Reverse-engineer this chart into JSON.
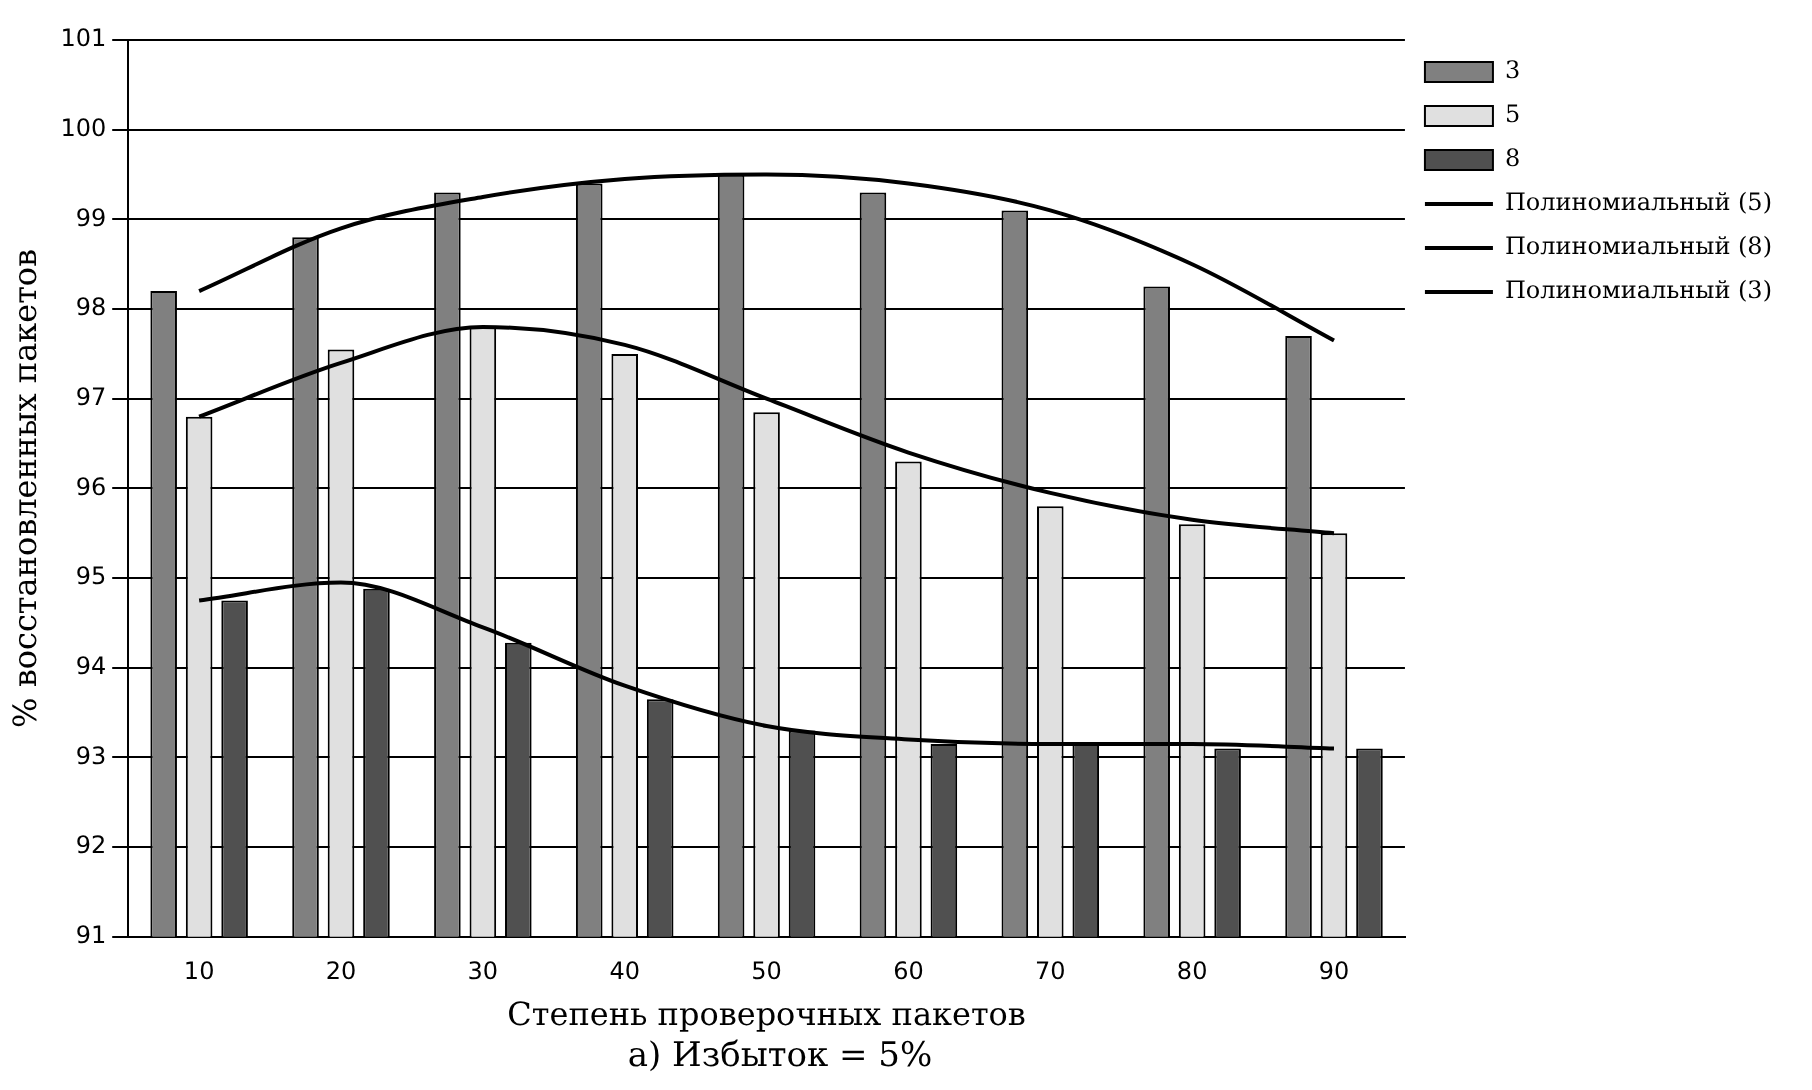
{
  "chart_data": {
    "type": "bar",
    "xlabel": "Степень проверочных пакетов",
    "ylabel": "% восстановленных пакетов",
    "annotations": [
      "а) Избыток = 5%"
    ],
    "categories": [
      "10",
      "20",
      "30",
      "40",
      "50",
      "60",
      "70",
      "80",
      "90"
    ],
    "series": [
      {
        "name": "3",
        "color": "#808080",
        "values": [
          98.2,
          98.8,
          99.3,
          99.4,
          99.5,
          99.3,
          99.1,
          98.25,
          97.7
        ]
      },
      {
        "name": "5",
        "color": "#e0e0e0",
        "values": [
          96.8,
          97.55,
          97.8,
          97.5,
          96.85,
          96.3,
          95.8,
          95.6,
          95.5
        ]
      },
      {
        "name": "8",
        "color": "#505050",
        "values": [
          94.75,
          94.88,
          94.28,
          93.65,
          93.3,
          93.15,
          93.15,
          93.1,
          93.1
        ]
      },
      {
        "name": "Полиномиальный (5)",
        "type": "line",
        "color": "#000000",
        "values": [
          96.8,
          97.4,
          97.8,
          97.6,
          97.0,
          96.4,
          95.95,
          95.65,
          95.5
        ]
      },
      {
        "name": "Полиномиальный (8)",
        "type": "line",
        "color": "#000000",
        "values": [
          94.75,
          94.95,
          94.45,
          93.8,
          93.35,
          93.2,
          93.15,
          93.15,
          93.1
        ]
      },
      {
        "name": "Полиномиальный (3)",
        "type": "line",
        "color": "#000000",
        "values": [
          98.2,
          98.9,
          99.25,
          99.45,
          99.5,
          99.4,
          99.1,
          98.5,
          97.65
        ]
      }
    ],
    "ylim": [
      91,
      101
    ],
    "yticks": [
      91,
      92,
      93,
      94,
      95,
      96,
      97,
      98,
      99,
      100,
      101
    ],
    "grid": "y",
    "legend": "right",
    "marker": "none"
  }
}
